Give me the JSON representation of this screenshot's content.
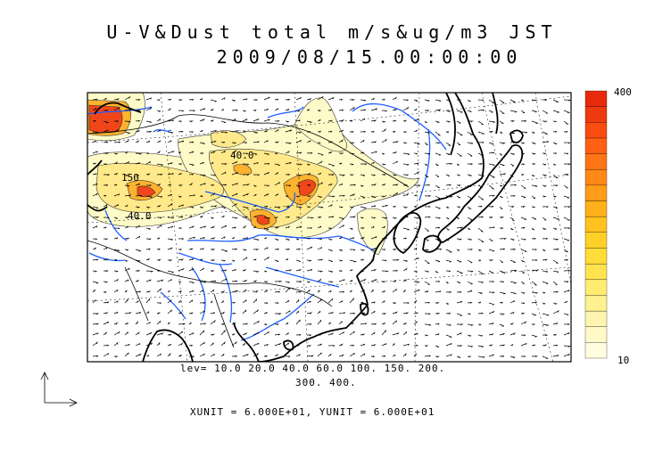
{
  "title": {
    "line1": "U-V&Dust total m/s&ug/m3 JST",
    "line2": "2009/08/15.00:00:00"
  },
  "contour_labels": [
    "40.0",
    "150",
    "40.0"
  ],
  "levels_text": {
    "line1": "lev= 10.0 20.0 40.0 60.0 100. 150. 200.",
    "line2": "300. 400."
  },
  "units_text": "XUNIT = 6.000E+01, YUNIT = 6.000E+01",
  "colorbar": {
    "max_label": "400",
    "min_label": "10",
    "colors": [
      "#fffde0",
      "#fff9c8",
      "#fff5b0",
      "#fff090",
      "#ffeb70",
      "#ffe450",
      "#ffdc38",
      "#ffd028",
      "#ffc21e",
      "#ffb01a",
      "#ff9c18",
      "#ff8816",
      "#ff7414",
      "#ff6012",
      "#f84c10",
      "#ee3a0e",
      "#e82a0c"
    ]
  },
  "colors": {
    "coast": "#000000",
    "rivers": "#1f5fff",
    "dust_low": "#fffbc8",
    "dust_mid": "#ffd84a",
    "dust_high": "#ff5a14"
  }
}
